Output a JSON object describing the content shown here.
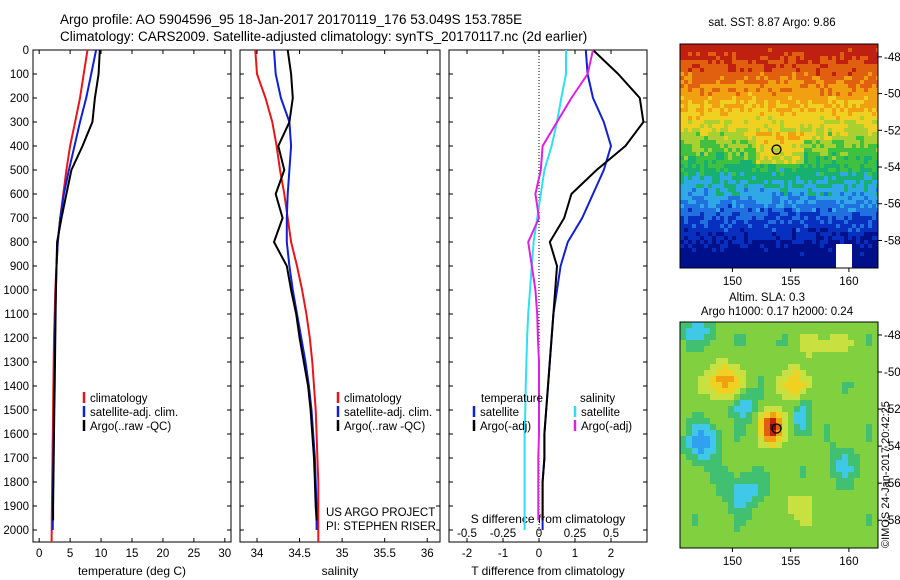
{
  "header": {
    "title_line1": "Argo profile: AO 5904596_95 18-Jan-2017 20170119_176 53.049S 153.785E",
    "title_line2": "Climatology: CARS2009. Satellite-adjusted climatology: synTS_20170117.nc (2d earlier)"
  },
  "colors": {
    "climatology": "#e8161b",
    "satellite_adj": "#1020d0",
    "argo": "#000000",
    "sat_s": "#30e0f0",
    "argo_s": "#e020e0"
  },
  "depth_ticks": [
    "0",
    "100",
    "200",
    "300",
    "400",
    "500",
    "600",
    "700",
    "800",
    "900",
    "1000",
    "1100",
    "1200",
    "1300",
    "1400",
    "1500",
    "1600",
    "1700",
    "1800",
    "1900",
    "2000"
  ],
  "footer": {
    "project": "US ARGO PROJECT",
    "pi": "PI: STEPHEN RISER",
    "imos_stamp": "©IMOS 24-Jan-2017 20:42:25"
  },
  "chart_data": [
    {
      "type": "line",
      "panel": "temperature",
      "xlabel": "temperature (deg C)",
      "ylabel": "",
      "xlim": [
        -1,
        31
      ],
      "ylim": [
        2050,
        0
      ],
      "xticks": [
        "0",
        "5",
        "10",
        "15",
        "20",
        "25",
        "30"
      ],
      "legend": [
        "climatology",
        "satellite-adj. clim.",
        "Argo(..raw -QC)"
      ],
      "series": [
        {
          "name": "climatology",
          "color": "climatology",
          "x": [
            7.8,
            7.2,
            6.6,
            5.8,
            5.0,
            4.4,
            3.9,
            3.4,
            3.0,
            2.8,
            2.6,
            2.5,
            2.4,
            2.35,
            2.3,
            2.25,
            2.2,
            2.15,
            2.1,
            2.05,
            2.0
          ],
          "y": [
            0,
            100,
            200,
            300,
            400,
            500,
            600,
            700,
            800,
            900,
            1000,
            1100,
            1200,
            1300,
            1400,
            1500,
            1600,
            1700,
            1800,
            1900,
            2050
          ]
        },
        {
          "name": "satellite-adj. clim.",
          "color": "satellite_adj",
          "x": [
            9.2,
            8.4,
            7.6,
            6.6,
            5.7,
            4.8,
            4.0,
            3.4,
            3.0,
            2.8,
            2.7,
            2.6,
            2.55,
            2.5,
            2.45,
            2.4,
            2.35,
            2.3,
            2.25,
            2.2,
            2.2
          ],
          "y": [
            0,
            100,
            200,
            300,
            400,
            500,
            600,
            700,
            800,
            900,
            1000,
            1100,
            1200,
            1300,
            1400,
            1500,
            1600,
            1700,
            1800,
            1900,
            2000
          ]
        },
        {
          "name": "Argo(..raw -QC)",
          "color": "argo",
          "x": [
            9.8,
            9.6,
            9.0,
            8.6,
            7.0,
            5.2,
            4.4,
            3.6,
            2.9,
            2.8,
            2.7,
            2.65,
            2.6,
            2.55,
            2.5,
            2.45,
            2.4,
            2.35,
            2.3,
            2.25,
            2.25
          ],
          "y": [
            0,
            100,
            200,
            300,
            400,
            500,
            600,
            700,
            800,
            900,
            1000,
            1100,
            1200,
            1300,
            1400,
            1500,
            1600,
            1700,
            1800,
            1900,
            1960
          ]
        }
      ]
    },
    {
      "type": "line",
      "panel": "salinity",
      "xlabel": "salinity",
      "ylabel": "",
      "xlim": [
        33.8,
        36.15
      ],
      "ylim": [
        2050,
        0
      ],
      "xticks": [
        "34",
        "34.5",
        "35",
        "35.5",
        "36"
      ],
      "legend": [
        "climatology",
        "satellite-adj. clim.",
        "Argo(..raw -QC)"
      ],
      "series": [
        {
          "name": "climatology",
          "color": "climatology",
          "x": [
            33.98,
            34.0,
            34.1,
            34.18,
            34.23,
            34.27,
            34.32,
            34.36,
            34.4,
            34.47,
            34.53,
            34.58,
            34.62,
            34.65,
            34.67,
            34.69,
            34.7,
            34.71,
            34.72,
            34.72,
            34.72
          ],
          "y": [
            0,
            100,
            200,
            300,
            400,
            500,
            600,
            700,
            800,
            900,
            1000,
            1100,
            1200,
            1300,
            1400,
            1500,
            1600,
            1700,
            1800,
            1900,
            2050
          ]
        },
        {
          "name": "satellite-adj. clim.",
          "color": "satellite_adj",
          "x": [
            34.2,
            34.22,
            34.28,
            34.38,
            34.4,
            34.38,
            34.36,
            34.35,
            34.35,
            34.38,
            34.42,
            34.47,
            34.52,
            34.57,
            34.61,
            34.64,
            34.66,
            34.68,
            34.69,
            34.7,
            34.7
          ],
          "y": [
            0,
            100,
            200,
            300,
            400,
            500,
            600,
            700,
            800,
            900,
            1000,
            1100,
            1200,
            1300,
            1400,
            1500,
            1600,
            1700,
            1800,
            1900,
            2000
          ]
        },
        {
          "name": "Argo(..raw -QC)",
          "color": "argo",
          "x": [
            34.36,
            34.4,
            34.42,
            34.38,
            34.25,
            34.32,
            34.22,
            34.3,
            34.2,
            34.35,
            34.4,
            34.46,
            34.5,
            34.55,
            34.6,
            34.63,
            34.65,
            34.67,
            34.68,
            34.69,
            34.7
          ],
          "y": [
            0,
            100,
            200,
            300,
            400,
            500,
            600,
            700,
            800,
            900,
            1000,
            1100,
            1200,
            1300,
            1400,
            1500,
            1600,
            1700,
            1800,
            1900,
            1960
          ]
        }
      ]
    },
    {
      "type": "line",
      "panel": "difference",
      "xlabel": "T difference from climatology",
      "xlabel_top": "S difference from climatology",
      "xlim": [
        -2.5,
        3.0
      ],
      "ylim": [
        2050,
        0
      ],
      "xticks": [
        "-2",
        "-1",
        "0",
        "1",
        "2"
      ],
      "sticks": [
        "-0.5",
        "-0.25",
        "0",
        "0.25",
        "0.5"
      ],
      "legend_temperature": [
        "temperature",
        "satellite",
        "Argo(-adj)"
      ],
      "legend_salinity": [
        "salinity",
        "satellite",
        "Argo(-adj)"
      ],
      "series": [
        {
          "name": "temperature satellite",
          "color": "satellite_adj",
          "x": [
            1.3,
            1.35,
            1.5,
            1.8,
            2.0,
            1.8,
            1.5,
            1.2,
            0.8,
            0.6,
            0.5,
            0.4,
            0.35,
            0.3,
            0.25,
            0.2,
            0.15,
            0.15,
            0.1,
            0.1,
            0.1
          ],
          "y": [
            0,
            100,
            200,
            300,
            400,
            500,
            600,
            700,
            800,
            900,
            1000,
            1100,
            1200,
            1300,
            1400,
            1500,
            1600,
            1700,
            1800,
            1900,
            2000
          ]
        },
        {
          "name": "temperature Argo(-adj)",
          "color": "argo",
          "x": [
            1.5,
            2.2,
            2.8,
            2.9,
            2.4,
            1.6,
            0.9,
            0.7,
            0.3,
            0.5,
            0.45,
            0.4,
            0.35,
            0.3,
            0.25,
            0.2,
            0.15,
            0.15,
            0.1,
            0.1,
            0.1
          ],
          "y": [
            0,
            100,
            200,
            300,
            400,
            500,
            600,
            700,
            800,
            900,
            1000,
            1100,
            1200,
            1300,
            1400,
            1500,
            1600,
            1700,
            1800,
            1900,
            1960
          ]
        },
        {
          "name": "salinity satellite",
          "color": "sat_s",
          "x": [
            0.75,
            0.75,
            0.62,
            0.5,
            0.35,
            0.15,
            0.05,
            -0.05,
            -0.15,
            -0.2,
            -0.25,
            -0.3,
            -0.33,
            -0.35,
            -0.37,
            -0.38,
            -0.4,
            -0.4,
            -0.4,
            -0.4,
            -0.4
          ],
          "y": [
            0,
            100,
            200,
            300,
            400,
            500,
            600,
            700,
            800,
            900,
            1000,
            1100,
            1200,
            1300,
            1400,
            1500,
            1600,
            1700,
            1800,
            1900,
            2000
          ]
        },
        {
          "name": "salinity Argo(-adj)",
          "color": "argo_s",
          "x": [
            1.5,
            1.35,
            0.9,
            0.5,
            0.1,
            0.05,
            -0.1,
            0.0,
            -0.3,
            -0.2,
            -0.1,
            -0.05,
            -0.03,
            0.0,
            0.0,
            0.0,
            0.0,
            -0.02,
            -0.02,
            -0.02,
            -0.02
          ],
          "y": [
            0,
            100,
            200,
            300,
            400,
            500,
            600,
            700,
            800,
            900,
            1000,
            1100,
            1200,
            1300,
            1400,
            1500,
            1600,
            1700,
            1800,
            1900,
            1960
          ]
        }
      ]
    },
    {
      "type": "heatmap",
      "panel": "sst_map",
      "title": "sat. SST: 8.87 Argo: 9.86",
      "xlim": [
        145.5,
        162.5
      ],
      "ylim": [
        -59.5,
        -47.3
      ],
      "xticks": [
        "150",
        "155",
        "160"
      ],
      "yticks": [
        "-48",
        "-50",
        "-52",
        "-54",
        "-56",
        "-58"
      ],
      "float_position": [
        153.785,
        -53.049
      ]
    },
    {
      "type": "heatmap",
      "panel": "sla_map",
      "title": "Altim. SLA: 0.3",
      "subtitle": "Argo h1000: 0.17 h2000: 0.24",
      "xlim": [
        145.5,
        162.5
      ],
      "ylim": [
        -59.5,
        -47.3
      ],
      "xticks": [
        "150",
        "155",
        "160"
      ],
      "yticks": [
        "-48",
        "-50",
        "-52",
        "-54",
        "-56",
        "-58"
      ],
      "float_position": [
        153.785,
        -53.049
      ]
    }
  ]
}
